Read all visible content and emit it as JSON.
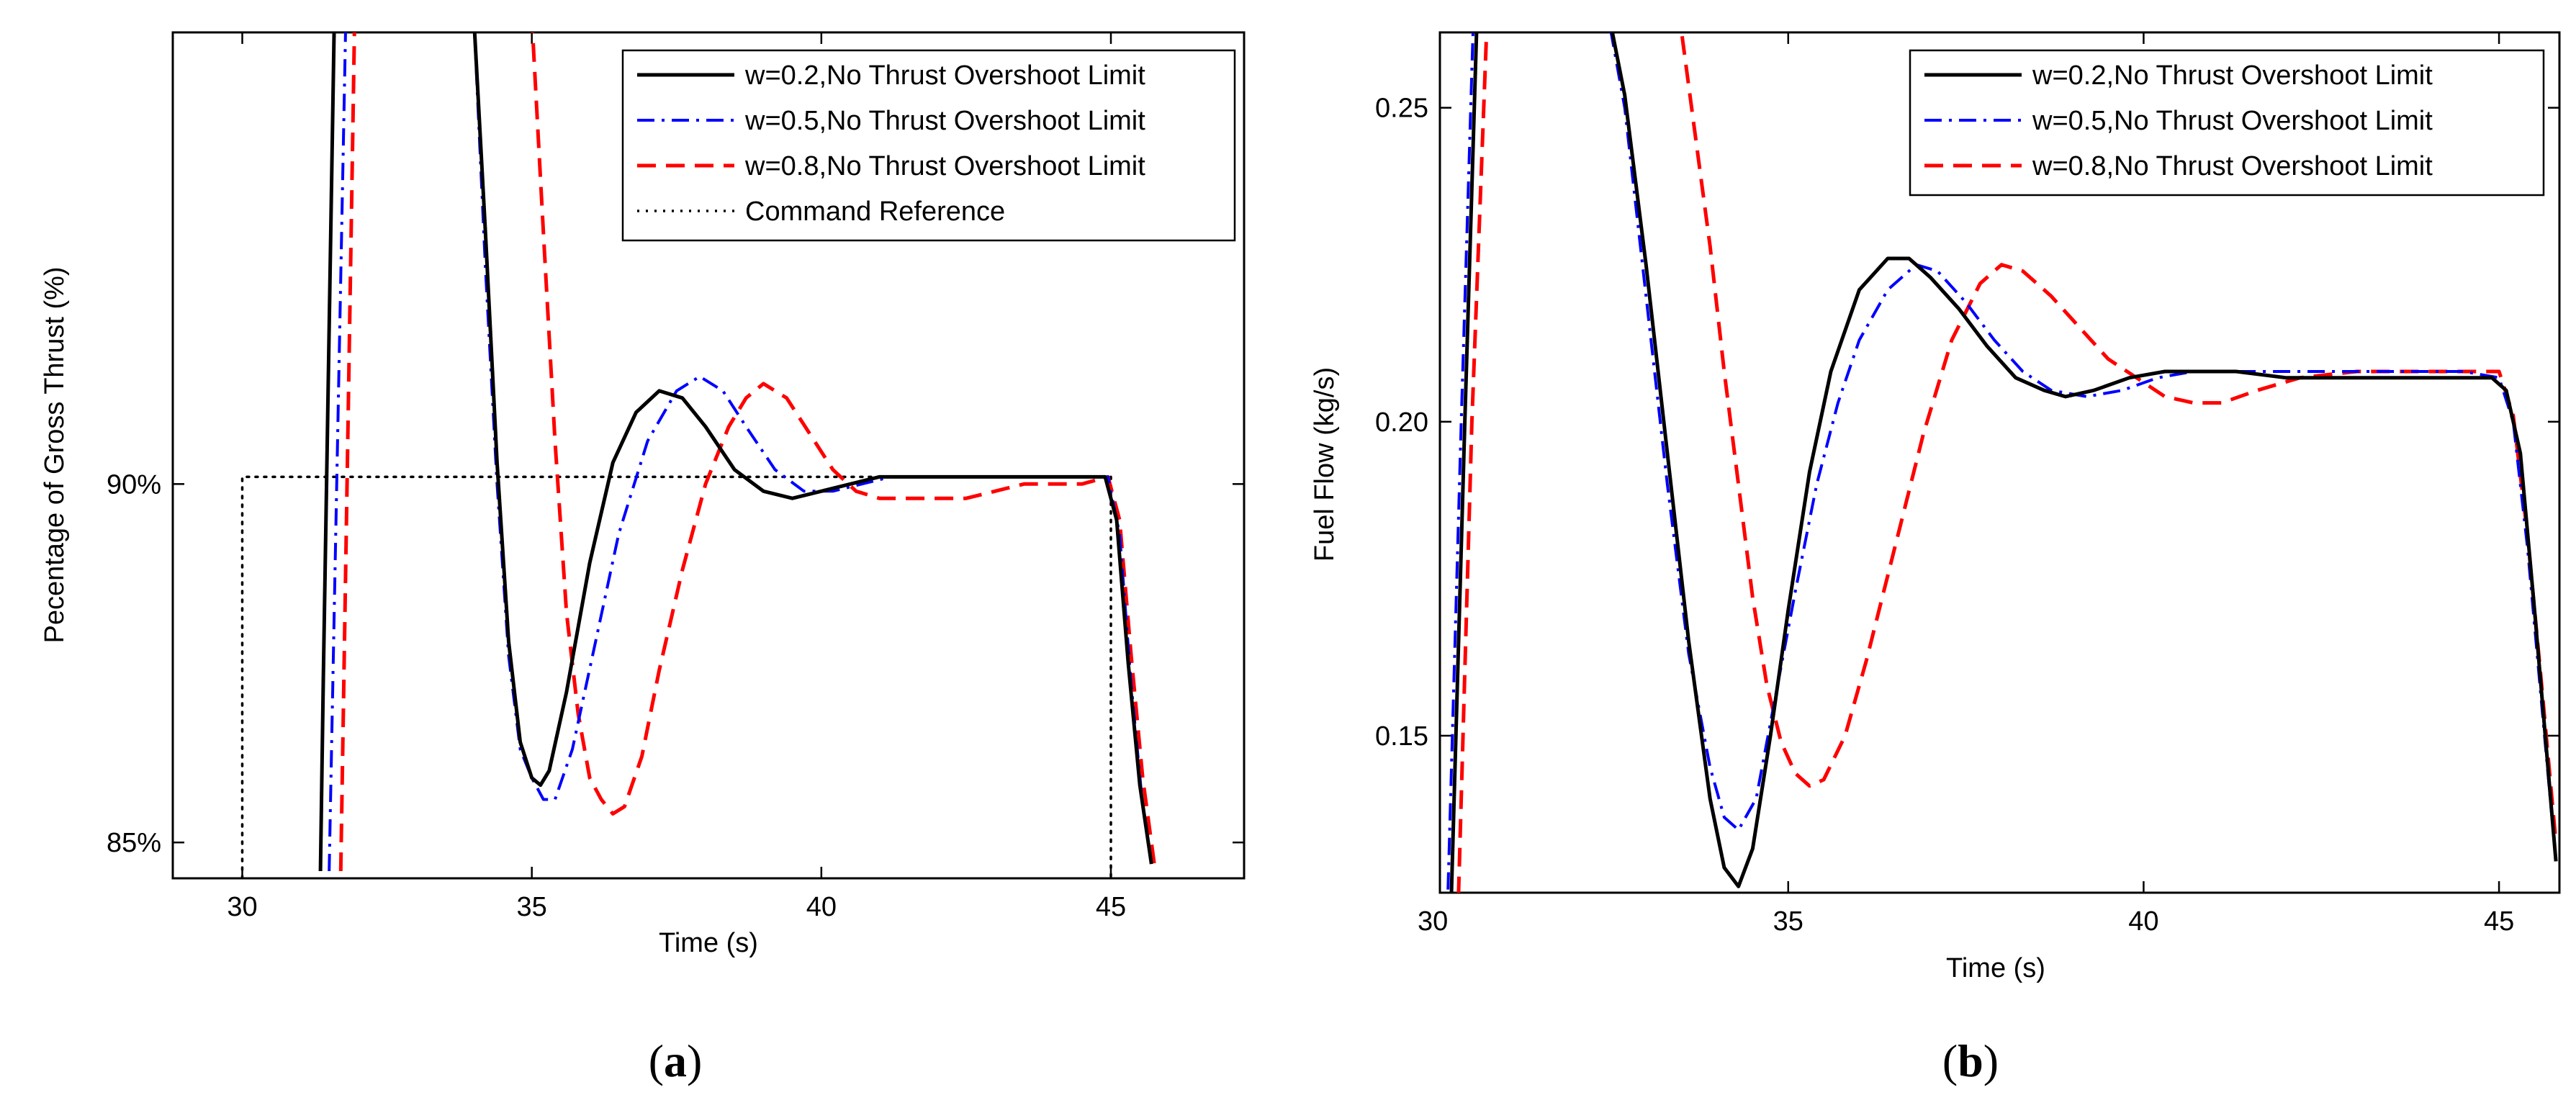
{
  "chart_data": [
    {
      "type": "line",
      "panel_label": "a",
      "xlabel": "Time (s)",
      "ylabel": "Pecentage of Gross Thrust (%)",
      "xlim": [
        28.8,
        47.3
      ],
      "ylim": [
        84.5,
        96.3
      ],
      "xticks": [
        30,
        35,
        40,
        45
      ],
      "xtick_labels": [
        "30",
        "35",
        "40",
        "45"
      ],
      "yticks": [
        85,
        90
      ],
      "ytick_labels": [
        "85%",
        "90%"
      ],
      "legend": {
        "location": "top-right"
      },
      "series": [
        {
          "name": "w=0.2,No Thrust Overshoot Limit",
          "color": "#000000",
          "style": "solid",
          "x": [
            31.35,
            31.4,
            31.6,
            34.0,
            34.2,
            34.4,
            34.6,
            34.8,
            35.0,
            35.15,
            35.3,
            35.6,
            36.0,
            36.4,
            36.8,
            37.2,
            37.6,
            38.0,
            38.5,
            39.0,
            39.5,
            40.0,
            40.5,
            41.0,
            41.5,
            42.0,
            43.0,
            44.0,
            44.9,
            45.1,
            45.3,
            45.5,
            45.7
          ],
          "y": [
            84.6,
            87.3,
            97.0,
            96.5,
            93.5,
            90.3,
            87.8,
            86.4,
            85.9,
            85.8,
            86.0,
            87.1,
            88.9,
            90.3,
            91.0,
            91.3,
            91.2,
            90.8,
            90.2,
            89.9,
            89.8,
            89.9,
            90.0,
            90.1,
            90.1,
            90.1,
            90.1,
            90.1,
            90.1,
            89.5,
            87.5,
            85.8,
            84.7
          ]
        },
        {
          "name": "w=0.5,No Thrust Overshoot Limit",
          "color": "#0000ff",
          "style": "dashdot",
          "x": [
            31.5,
            31.8,
            34.0,
            34.2,
            34.4,
            34.6,
            34.8,
            35.0,
            35.2,
            35.4,
            35.7,
            36.1,
            36.5,
            37.0,
            37.5,
            37.9,
            38.3,
            38.7,
            39.2,
            39.7,
            40.2,
            40.7,
            41.2,
            41.7,
            42.5,
            43.5,
            44.5,
            44.95,
            45.15,
            45.35,
            45.55,
            45.7
          ],
          "y": [
            84.6,
            97.0,
            96.5,
            93.0,
            90.0,
            87.6,
            86.3,
            85.9,
            85.6,
            85.6,
            86.3,
            87.8,
            89.3,
            90.6,
            91.3,
            91.5,
            91.3,
            90.8,
            90.2,
            89.9,
            89.9,
            90.0,
            90.1,
            90.1,
            90.1,
            90.1,
            90.1,
            90.1,
            89.3,
            87.2,
            85.5,
            84.7
          ]
        },
        {
          "name": "w=0.8,No Thrust Overshoot Limit",
          "color": "#ff0000",
          "style": "dashed",
          "x": [
            31.7,
            31.95,
            35.0,
            35.2,
            35.4,
            35.6,
            35.8,
            36.0,
            36.2,
            36.4,
            36.6,
            36.9,
            37.2,
            37.6,
            38.0,
            38.4,
            38.7,
            39.0,
            39.4,
            39.8,
            40.2,
            40.6,
            41.0,
            41.5,
            42.0,
            42.5,
            43.0,
            43.5,
            44.0,
            44.5,
            44.95,
            45.15,
            45.35,
            45.55,
            45.75
          ],
          "y": [
            84.6,
            97.0,
            96.5,
            93.5,
            90.6,
            88.2,
            86.8,
            85.9,
            85.6,
            85.4,
            85.5,
            86.2,
            87.4,
            88.8,
            90.0,
            90.8,
            91.2,
            91.4,
            91.2,
            90.7,
            90.2,
            89.9,
            89.8,
            89.8,
            89.8,
            89.8,
            89.9,
            90.0,
            90.0,
            90.0,
            90.1,
            89.5,
            87.6,
            85.9,
            84.7
          ]
        },
        {
          "name": "Command Reference",
          "color": "#000000",
          "style": "dotted",
          "x": [
            30,
            30,
            45,
            45
          ],
          "y": [
            84.5,
            90.1,
            90.1,
            84.5
          ]
        }
      ]
    },
    {
      "type": "line",
      "panel_label": "b",
      "xlabel": "Time (s)",
      "ylabel": "Fuel Flow (kg/s)",
      "xlim": [
        30.1,
        45.85
      ],
      "ylim": [
        0.125,
        0.262
      ],
      "xticks": [
        30,
        35,
        40,
        45
      ],
      "xtick_labels": [
        "30",
        "35",
        "40",
        "45"
      ],
      "yticks": [
        0.15,
        0.2,
        0.25
      ],
      "ytick_labels": [
        "0.15",
        "0.20",
        "0.25"
      ],
      "legend": {
        "location": "top-right"
      },
      "series": [
        {
          "name": "w=0.2,No Thrust Overshoot Limit",
          "color": "#000000",
          "style": "solid",
          "x": [
            30.25,
            30.45,
            30.65,
            32.3,
            32.7,
            33.0,
            33.3,
            33.6,
            33.9,
            34.1,
            34.3,
            34.5,
            34.75,
            35.0,
            35.3,
            35.6,
            36.0,
            36.4,
            36.7,
            37.0,
            37.4,
            37.8,
            38.2,
            38.6,
            38.9,
            39.3,
            39.8,
            40.3,
            40.8,
            41.3,
            42.0,
            43.0,
            44.0,
            44.9,
            45.1,
            45.3,
            45.5,
            45.65,
            45.8
          ],
          "y": [
            0.12,
            0.2,
            0.275,
            0.275,
            0.252,
            0.225,
            0.195,
            0.165,
            0.14,
            0.129,
            0.126,
            0.132,
            0.15,
            0.17,
            0.192,
            0.208,
            0.221,
            0.226,
            0.226,
            0.223,
            0.218,
            0.212,
            0.207,
            0.205,
            0.204,
            0.205,
            0.207,
            0.208,
            0.208,
            0.208,
            0.207,
            0.207,
            0.207,
            0.207,
            0.205,
            0.195,
            0.17,
            0.15,
            0.13
          ]
        },
        {
          "name": "w=0.5,No Thrust Overshoot Limit",
          "color": "#0000ff",
          "style": "dashdot",
          "x": [
            30.2,
            30.4,
            30.6,
            32.3,
            32.7,
            33.0,
            33.3,
            33.6,
            33.9,
            34.1,
            34.3,
            34.55,
            34.8,
            35.1,
            35.4,
            35.7,
            36.0,
            36.4,
            36.8,
            37.1,
            37.5,
            37.9,
            38.3,
            38.7,
            39.2,
            39.7,
            40.2,
            40.7,
            41.5,
            42.5,
            43.5,
            44.5,
            45.0,
            45.2,
            45.4,
            45.6,
            45.8
          ],
          "y": [
            0.12,
            0.2,
            0.275,
            0.275,
            0.25,
            0.22,
            0.19,
            0.163,
            0.145,
            0.137,
            0.135,
            0.14,
            0.155,
            0.173,
            0.19,
            0.203,
            0.213,
            0.221,
            0.225,
            0.224,
            0.219,
            0.213,
            0.208,
            0.205,
            0.204,
            0.205,
            0.207,
            0.208,
            0.208,
            0.208,
            0.208,
            0.208,
            0.207,
            0.2,
            0.18,
            0.155,
            0.13
          ]
        },
        {
          "name": "w=0.8,No Thrust Overshoot Limit",
          "color": "#ff0000",
          "style": "dashed",
          "x": [
            30.35,
            30.55,
            30.8,
            33.3,
            33.5,
            33.7,
            33.9,
            34.1,
            34.3,
            34.5,
            34.7,
            34.9,
            35.1,
            35.3,
            35.5,
            35.8,
            36.1,
            36.5,
            36.9,
            37.3,
            37.7,
            38.0,
            38.3,
            38.7,
            39.1,
            39.5,
            39.9,
            40.3,
            40.7,
            41.1,
            41.6,
            42.2,
            43.0,
            44.0,
            45.0,
            45.2,
            45.4,
            45.6,
            45.8
          ],
          "y": [
            0.12,
            0.2,
            0.275,
            0.275,
            0.262,
            0.245,
            0.228,
            0.208,
            0.19,
            0.172,
            0.158,
            0.149,
            0.144,
            0.142,
            0.143,
            0.15,
            0.162,
            0.18,
            0.198,
            0.213,
            0.222,
            0.225,
            0.224,
            0.22,
            0.215,
            0.21,
            0.207,
            0.204,
            0.203,
            0.203,
            0.205,
            0.207,
            0.208,
            0.208,
            0.208,
            0.201,
            0.182,
            0.158,
            0.133
          ]
        }
      ]
    }
  ]
}
